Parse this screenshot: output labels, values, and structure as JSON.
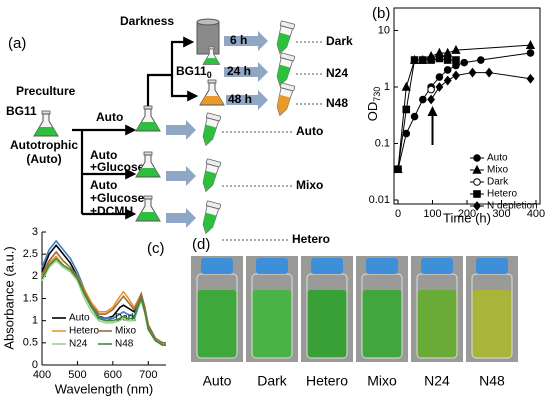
{
  "diagram": {
    "label": "(a)",
    "preculture": "Preculture",
    "medium": "BG11",
    "strain": [
      "Autotrophic",
      "(Auto)"
    ],
    "darkness": "Darkness",
    "starved_medium": {
      "base": "BG11",
      "sub": "0"
    },
    "times": [
      "6 h",
      "24 h",
      "48 h"
    ],
    "arrow_label": "Auto",
    "conditions": [
      [
        "Auto",
        "+Glucose"
      ],
      [
        "Auto",
        "+Glucose",
        "+DCMU"
      ]
    ],
    "outcomes": [
      "Dark",
      "N24",
      "N48",
      "Auto",
      "Mixo",
      "Hetero"
    ]
  },
  "chart_data": [
    {
      "type": "line",
      "label": "(b)",
      "x_label": "Time (h)",
      "y_label": {
        "base": "OD",
        "sub": "730"
      },
      "y_scale": "log",
      "xlim": [
        0,
        400
      ],
      "ylim": [
        0.01,
        25
      ],
      "xticks": [
        0,
        100,
        200,
        300,
        400
      ],
      "yticks": [
        0.01,
        0.1,
        1,
        10
      ],
      "legend": "lower right",
      "arrow_x": 100,
      "series": [
        {
          "name": "Auto",
          "color": "#000000",
          "marker": "circle",
          "x": [
            0,
            24,
            48,
            72,
            96,
            120,
            144,
            168,
            192,
            240,
            384
          ],
          "values": [
            0.035,
            0.15,
            0.3,
            0.6,
            1.0,
            1.5,
            2.0,
            2.4,
            2.7,
            3.0,
            4.0
          ]
        },
        {
          "name": "Mixo",
          "color": "#000000",
          "marker": "triangle",
          "x": [
            0,
            24,
            48,
            72,
            96,
            120,
            144,
            168,
            384
          ],
          "values": [
            0.035,
            1.0,
            3.0,
            3.0,
            3.5,
            4.0,
            4.0,
            4.5,
            5.5
          ]
        },
        {
          "name": "Dark",
          "color": "#000000",
          "marker": "open-circle",
          "x": [
            96
          ],
          "values": [
            0.9
          ]
        },
        {
          "name": "Hetero",
          "color": "#000000",
          "marker": "square",
          "x": [
            0,
            24,
            48,
            72,
            96,
            120,
            144,
            168
          ],
          "values": [
            0.035,
            0.4,
            3.0,
            3.0,
            3.0,
            3.2,
            3.0,
            3.0
          ]
        },
        {
          "name": "N depletion",
          "color": "#000000",
          "marker": "diamond",
          "x": [
            96,
            120,
            144,
            168,
            216,
            264,
            384
          ],
          "values": [
            0.6,
            1.0,
            1.3,
            1.6,
            1.8,
            1.8,
            1.4
          ]
        }
      ]
    },
    {
      "type": "line",
      "label": "(c)",
      "x_label": "Wavelength (nm)",
      "y_label": "Absorbance (a.u.)",
      "xlim": [
        400,
        750
      ],
      "ylim": [
        0,
        3
      ],
      "xticks": [
        400,
        500,
        600,
        700
      ],
      "yticks": [
        0,
        0.5,
        1,
        1.5,
        2,
        2.5,
        3
      ],
      "legend": "lower left",
      "x": [
        400,
        420,
        440,
        460,
        480,
        500,
        520,
        540,
        560,
        580,
        600,
        620,
        630,
        640,
        660,
        670,
        680,
        690,
        700,
        720,
        740,
        750
      ],
      "series": [
        {
          "name": "Auto",
          "color": "#000000",
          "values": [
            2.1,
            2.5,
            2.7,
            2.5,
            2.3,
            2.0,
            1.6,
            1.3,
            1.1,
            1.05,
            1.1,
            1.3,
            1.35,
            1.3,
            1.2,
            1.4,
            1.6,
            1.3,
            0.9,
            0.6,
            0.5,
            0.5
          ]
        },
        {
          "name": "Dark",
          "color": "#3a7fc4",
          "values": [
            2.2,
            2.6,
            2.8,
            2.6,
            2.4,
            2.1,
            1.7,
            1.35,
            1.1,
            1.0,
            1.05,
            1.15,
            1.2,
            1.15,
            1.1,
            1.35,
            1.55,
            1.25,
            0.85,
            0.55,
            0.45,
            0.45
          ]
        },
        {
          "name": "Hetero",
          "color": "#e8962a",
          "values": [
            2.0,
            2.3,
            2.45,
            2.25,
            2.15,
            2.0,
            1.7,
            1.4,
            1.2,
            1.2,
            1.3,
            1.55,
            1.65,
            1.55,
            1.3,
            1.45,
            1.6,
            1.3,
            0.9,
            0.6,
            0.5,
            0.5
          ]
        },
        {
          "name": "Mixo",
          "color": "#9c6b3a",
          "values": [
            2.05,
            2.35,
            2.55,
            2.35,
            2.2,
            2.0,
            1.65,
            1.35,
            1.15,
            1.15,
            1.25,
            1.45,
            1.55,
            1.45,
            1.25,
            1.4,
            1.6,
            1.3,
            0.9,
            0.6,
            0.5,
            0.5
          ]
        },
        {
          "name": "N24",
          "color": "#9ed28a",
          "values": [
            1.9,
            2.2,
            2.35,
            2.2,
            2.1,
            1.9,
            1.5,
            1.2,
            1.0,
            0.95,
            0.95,
            1.0,
            1.05,
            1.0,
            1.0,
            1.25,
            1.45,
            1.2,
            0.8,
            0.55,
            0.45,
            0.45
          ]
        },
        {
          "name": "N48",
          "color": "#3f8a3a",
          "values": [
            1.95,
            2.25,
            2.4,
            2.25,
            2.15,
            1.95,
            1.6,
            1.3,
            1.05,
            1.0,
            1.0,
            1.05,
            1.1,
            1.05,
            1.05,
            1.3,
            1.5,
            1.2,
            0.8,
            0.55,
            0.45,
            0.45
          ]
        }
      ]
    }
  ],
  "photos": {
    "label": "(d)",
    "samples": [
      "Auto",
      "Dark",
      "Hetero",
      "Mixo",
      "N24",
      "N48"
    ]
  }
}
